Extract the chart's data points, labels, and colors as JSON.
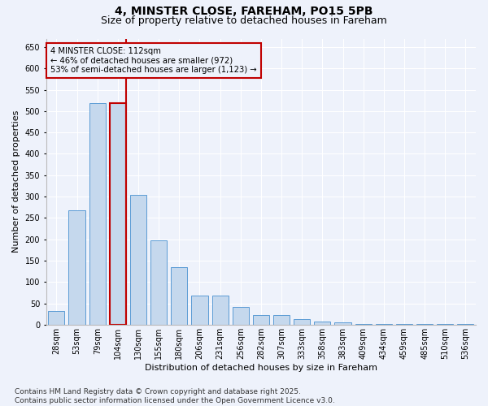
{
  "title_line1": "4, MINSTER CLOSE, FAREHAM, PO15 5PB",
  "title_line2": "Size of property relative to detached houses in Fareham",
  "xlabel": "Distribution of detached houses by size in Fareham",
  "ylabel": "Number of detached properties",
  "categories": [
    "28sqm",
    "53sqm",
    "79sqm",
    "104sqm",
    "130sqm",
    "155sqm",
    "180sqm",
    "206sqm",
    "231sqm",
    "256sqm",
    "282sqm",
    "307sqm",
    "333sqm",
    "358sqm",
    "383sqm",
    "409sqm",
    "434sqm",
    "459sqm",
    "485sqm",
    "510sqm",
    "536sqm"
  ],
  "values": [
    31,
    267,
    519,
    519,
    304,
    198,
    134,
    68,
    68,
    41,
    22,
    22,
    13,
    7,
    6,
    2,
    2,
    1,
    1,
    1,
    1
  ],
  "bar_color": "#c5d8ed",
  "bar_edge_color": "#5b9bd5",
  "highlight_bar_index": 3,
  "highlight_edge_color": "#c00000",
  "vline_color": "#c00000",
  "annotation_text": "4 MINSTER CLOSE: 112sqm\n← 46% of detached houses are smaller (972)\n53% of semi-detached houses are larger (1,123) →",
  "annotation_box_color": "#c00000",
  "ylim": [
    0,
    670
  ],
  "yticks": [
    0,
    50,
    100,
    150,
    200,
    250,
    300,
    350,
    400,
    450,
    500,
    550,
    600,
    650
  ],
  "footnote": "Contains HM Land Registry data © Crown copyright and database right 2025.\nContains public sector information licensed under the Open Government Licence v3.0.",
  "bg_color": "#eef2fb",
  "grid_color": "#ffffff",
  "title_fontsize": 10,
  "subtitle_fontsize": 9,
  "axis_label_fontsize": 8,
  "tick_fontsize": 7,
  "footnote_fontsize": 6.5
}
